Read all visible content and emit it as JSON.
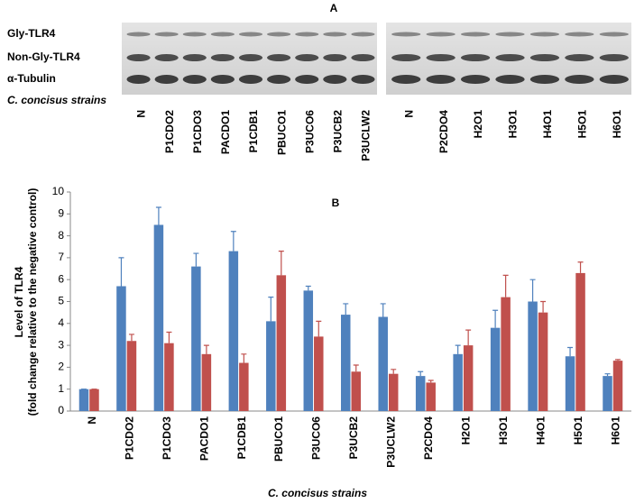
{
  "blot": {
    "panel_label": "A",
    "rows": [
      "Gly-TLR4",
      "Non-Gly-TLR4",
      "α-Tubulin"
    ],
    "strains_label": "C. concisus strains",
    "left_lanes": [
      "N",
      "P1CDO2",
      "P1CDO3",
      "PACDO1",
      "P1CDB1",
      "PBUCO1",
      "P3UCO6",
      "P3UCB2",
      "P3UCLW2"
    ],
    "right_lanes": [
      "N",
      "P2CDO4",
      "H2O1",
      "H3O1",
      "H4O1",
      "H5O1",
      "H6O1"
    ]
  },
  "chart_data": {
    "type": "bar",
    "panel_label": "B",
    "y_label": [
      "Level of TLR4",
      "(fold change relative to the negative control)"
    ],
    "x_label": "C. concisus strains",
    "categories": [
      "N",
      "P1CDO2",
      "P1CDO3",
      "PACDO1",
      "P1CDB1",
      "PBUCO1",
      "P3UCO6",
      "P3UCB2",
      "P3UCLW2",
      "P2CDO4",
      "H2O1",
      "H3O1",
      "H4O1",
      "H5O1",
      "H6O1"
    ],
    "series": [
      {
        "color": "#4f81bd",
        "values": [
          1,
          5.7,
          8.5,
          6.6,
          7.3,
          4.1,
          5.5,
          4.4,
          4.3,
          1.6,
          2.6,
          3.8,
          5.0,
          2.5,
          1.6
        ],
        "errors": [
          0,
          1.3,
          0.8,
          0.6,
          0.9,
          1.1,
          0.2,
          0.5,
          0.6,
          0.2,
          0.4,
          0.8,
          1.0,
          0.4,
          0.1
        ]
      },
      {
        "color": "#c0504d",
        "values": [
          1,
          3.2,
          3.1,
          2.6,
          2.2,
          6.2,
          3.4,
          1.8,
          1.7,
          1.3,
          3.0,
          5.2,
          4.5,
          6.3,
          2.3
        ],
        "errors": [
          0,
          0.3,
          0.5,
          0.4,
          0.4,
          1.1,
          0.7,
          0.3,
          0.2,
          0.1,
          0.7,
          1.0,
          0.5,
          0.5,
          0.05
        ]
      }
    ],
    "ylim": [
      0,
      10
    ],
    "yticks": [
      0,
      1,
      2,
      3,
      4,
      5,
      6,
      7,
      8,
      9,
      10
    ]
  }
}
